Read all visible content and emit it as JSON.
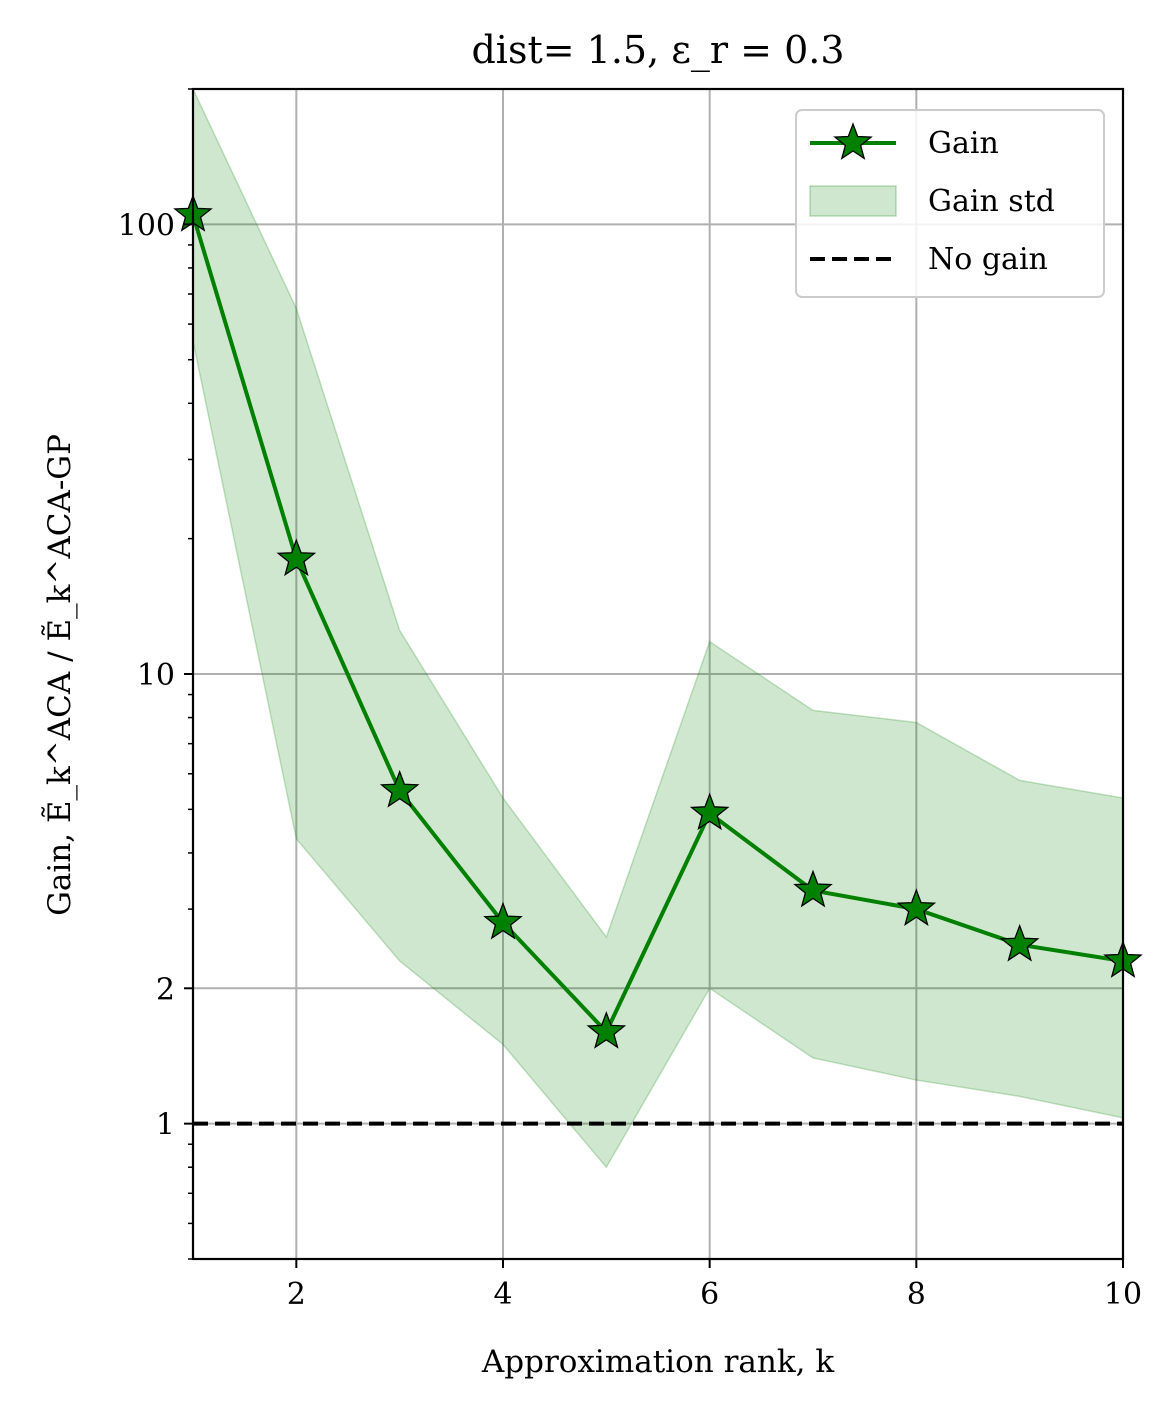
{
  "chart_data": {
    "type": "line",
    "title": "dist= 1.5, ε_r = 0.3",
    "xlabel": "Approximation rank, k",
    "ylabel": "Gain, Ẽ_k^ACA / Ẽ_k^ACA-GP",
    "xlim": [
      1,
      10
    ],
    "ylim": [
      0.5,
      200
    ],
    "yscale": "log",
    "x_ticks": [
      2,
      4,
      6,
      8,
      10
    ],
    "y_ticks": [
      1,
      2,
      10,
      100
    ],
    "grid": true,
    "legend_position": "top-right",
    "x": [
      1,
      2,
      3,
      4,
      5,
      6,
      7,
      8,
      9,
      10
    ],
    "series": [
      {
        "name": "Gain",
        "kind": "line-marker",
        "marker": "star",
        "color": "#008000",
        "values": [
          105,
          18,
          5.5,
          2.8,
          1.6,
          4.9,
          3.3,
          3.0,
          2.5,
          2.3
        ]
      },
      {
        "name": "Gain std",
        "kind": "band",
        "color": "#008000",
        "upper": [
          200,
          65,
          12.5,
          5.3,
          2.6,
          11.8,
          8.3,
          7.8,
          5.8,
          5.3
        ],
        "lower": [
          55,
          4.3,
          2.3,
          1.5,
          0.8,
          2.0,
          1.4,
          1.25,
          1.15,
          1.03
        ]
      },
      {
        "name": "No gain",
        "kind": "hline",
        "style": "dashed",
        "color": "#000000",
        "value": 1
      }
    ]
  }
}
